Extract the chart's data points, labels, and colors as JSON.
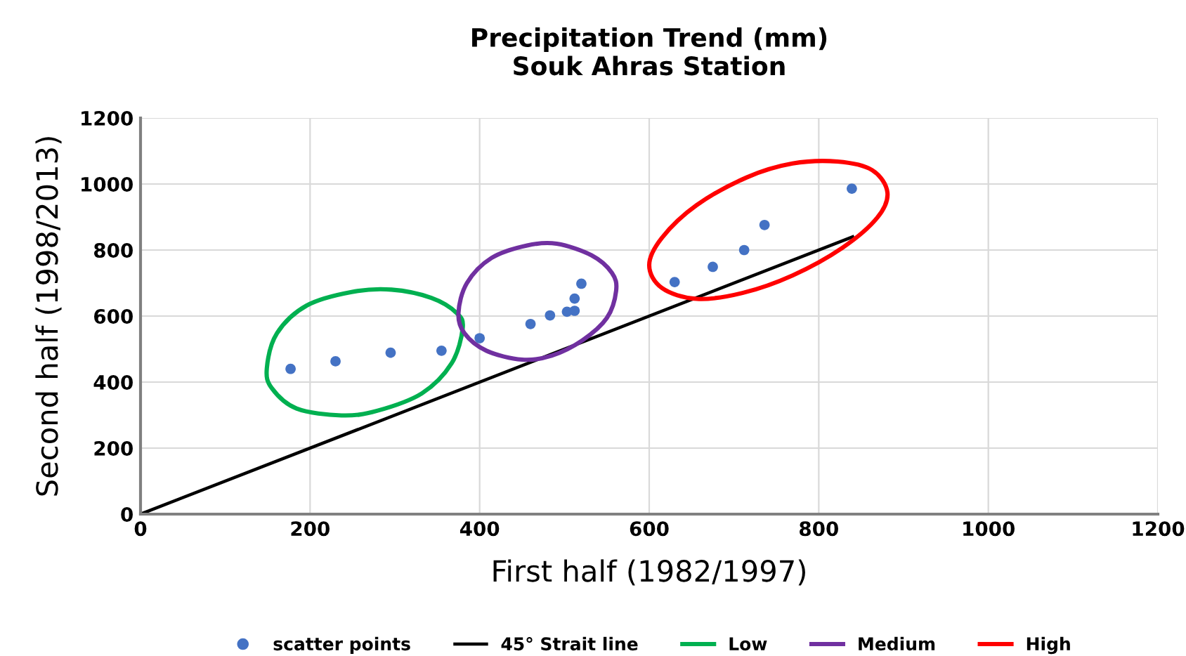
{
  "chart_data": {
    "type": "scatter",
    "title": "Precipitation Trend (mm)\nSouk Ahras Station",
    "xlabel": "First half (1982/1997)",
    "ylabel": "Second half (1998/2013)",
    "xlim": [
      0,
      1200
    ],
    "ylim": [
      0,
      1200
    ],
    "xticks": [
      0,
      200,
      400,
      600,
      800,
      1000,
      1200
    ],
    "yticks": [
      0,
      200,
      400,
      600,
      800,
      1000,
      1200
    ],
    "grid": true,
    "legend": "bottom",
    "annotations": [
      "Low",
      "Medium",
      "High"
    ],
    "series": [
      {
        "name": "scatter points",
        "color": "#4472c4",
        "marker": "circle",
        "x": [
          177,
          230,
          295,
          355,
          400,
          460,
          483,
          503,
          512,
          512,
          520,
          630,
          675,
          712,
          736,
          839
        ],
        "values": [
          440,
          463,
          489,
          495,
          533,
          576,
          602,
          613,
          616,
          653,
          698,
          703,
          749,
          800,
          876,
          986
        ]
      },
      {
        "name": "45° Strait line",
        "color": "#000000",
        "type": "line",
        "x": [
          0,
          840
        ],
        "values": [
          0,
          840
        ]
      }
    ]
  }
}
